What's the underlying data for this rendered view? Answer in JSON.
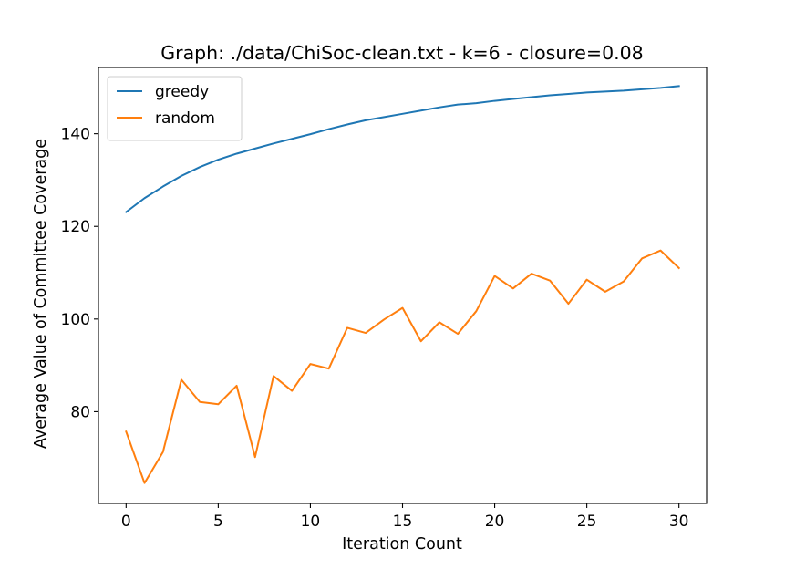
{
  "chart_data": {
    "type": "line",
    "title": "Graph: ./data/ChiSoc-clean.txt - k=6 - closure=0.08",
    "xlabel": "Iteration Count",
    "ylabel": "Average Value of Committee Coverage",
    "xlim": [
      -1.5,
      31.5
    ],
    "ylim": [
      60.2,
      154.3
    ],
    "xticks": [
      0,
      5,
      10,
      15,
      20,
      25,
      30
    ],
    "yticks": [
      80,
      100,
      120,
      140
    ],
    "grid": false,
    "legend_position": "upper-left",
    "x": [
      0,
      1,
      2,
      3,
      4,
      5,
      6,
      7,
      8,
      9,
      10,
      11,
      12,
      13,
      14,
      15,
      16,
      17,
      18,
      19,
      20,
      21,
      22,
      23,
      24,
      25,
      26,
      27,
      28,
      29,
      30
    ],
    "series": [
      {
        "name": "greedy",
        "color": "#1f77b4",
        "values": [
          123.1,
          126.1,
          128.6,
          130.9,
          132.8,
          134.4,
          135.7,
          136.8,
          137.9,
          138.9,
          139.9,
          141.0,
          142.0,
          142.9,
          143.6,
          144.3,
          145.0,
          145.7,
          146.3,
          146.6,
          147.1,
          147.5,
          147.9,
          148.3,
          148.6,
          148.9,
          149.1,
          149.3,
          149.6,
          149.9,
          150.3
        ]
      },
      {
        "name": "random",
        "color": "#ff7f0e",
        "values": [
          75.7,
          64.6,
          71.3,
          86.9,
          82.1,
          81.6,
          85.6,
          70.2,
          87.7,
          84.5,
          90.3,
          89.3,
          98.1,
          97.0,
          99.9,
          102.4,
          95.2,
          99.3,
          96.8,
          101.7,
          109.3,
          106.6,
          109.8,
          108.3,
          103.3,
          108.5,
          105.9,
          108.1,
          113.1,
          114.8,
          111.0
        ]
      }
    ]
  }
}
